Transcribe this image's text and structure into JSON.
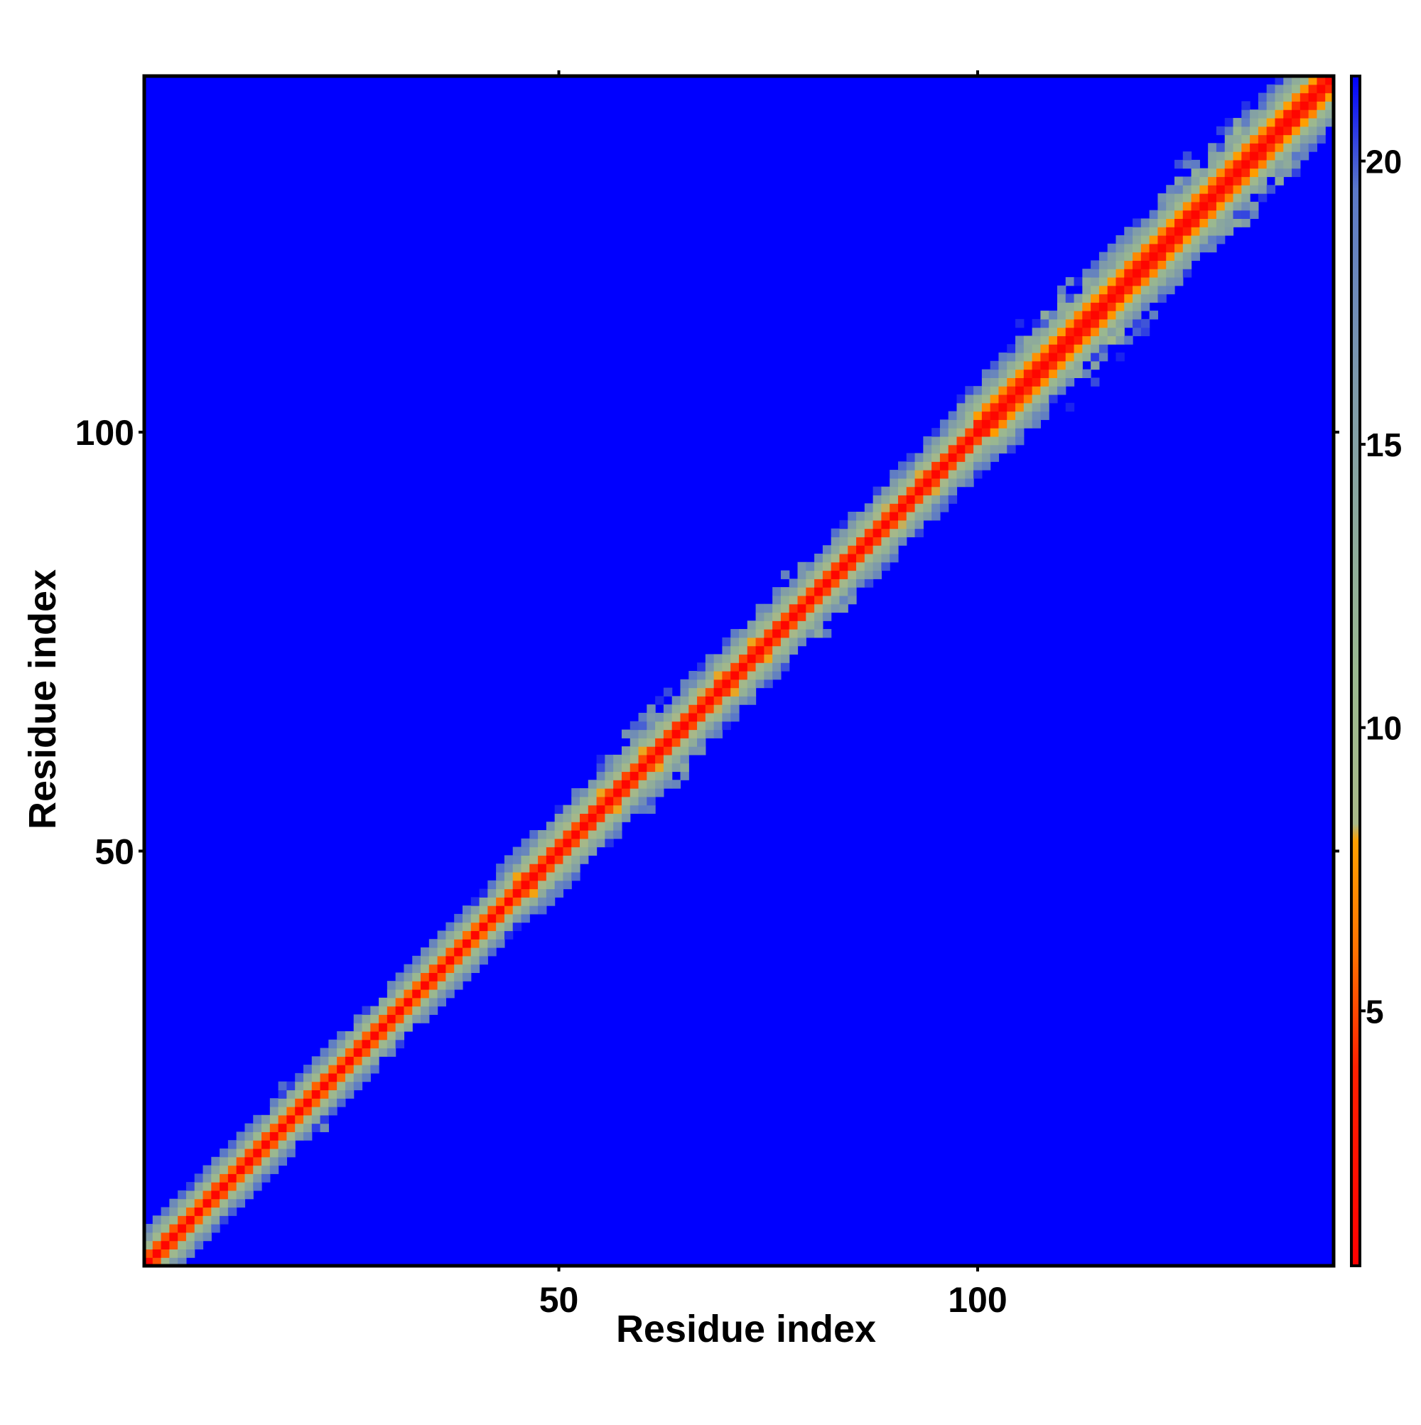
{
  "chart_data": {
    "type": "heatmap",
    "title": "",
    "xlabel": "Residue index",
    "ylabel": "Residue index",
    "n_residues": 142,
    "xlim": [
      0.5,
      142.5
    ],
    "ylim": [
      0.5,
      142.5
    ],
    "x_ticks": [
      50,
      100
    ],
    "y_ticks": [
      50,
      100
    ],
    "x_tick_labels": [
      "50",
      "100"
    ],
    "y_tick_labels": [
      "50",
      "100"
    ],
    "grid": false,
    "background_color": "#0000ff",
    "colorbar": {
      "placement": "right",
      "min": 0.5,
      "max": 21.5,
      "ticks": [
        5,
        10,
        15,
        20
      ],
      "tick_labels": [
        "5",
        "10",
        "15",
        "20"
      ],
      "stops": [
        {
          "value": 0.5,
          "color": "#ff0000"
        },
        {
          "value": 4.0,
          "color": "#ff2000"
        },
        {
          "value": 6.0,
          "color": "#ff7000"
        },
        {
          "value": 8.0,
          "color": "#ffa000"
        },
        {
          "value": 8.3,
          "color": "#a8b888"
        },
        {
          "value": 11.0,
          "color": "#9ab890"
        },
        {
          "value": 16.0,
          "color": "#7e9aaa"
        },
        {
          "value": 19.5,
          "color": "#5a78c8"
        },
        {
          "value": 21.5,
          "color": "#0000ff"
        }
      ]
    },
    "distance_profile": {
      "segments": [
        {
          "start": 1,
          "end": 45,
          "band": 4.6
        },
        {
          "start": 46,
          "end": 100,
          "band": 3.9
        },
        {
          "start": 101,
          "end": 142,
          "band": 3.2
        }
      ],
      "noise_regions": [
        {
          "center": 18,
          "spread": 3
        },
        {
          "center": 62,
          "spread": 6
        },
        {
          "center": 80,
          "spread": 4
        },
        {
          "center": 112,
          "spread": 7
        },
        {
          "center": 130,
          "spread": 6
        }
      ]
    }
  }
}
